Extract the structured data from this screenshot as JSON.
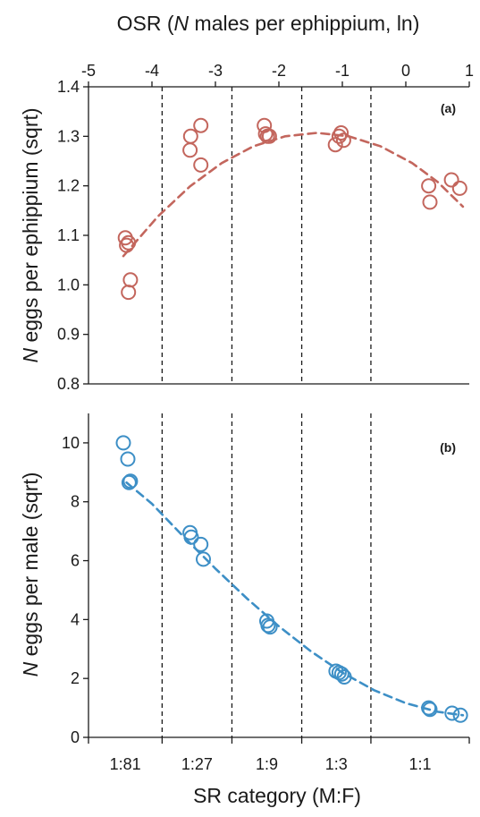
{
  "colors": {
    "panel_a": "#c3665d",
    "panel_b": "#3d8fc6",
    "axis": "#1a1a1a",
    "divider": "#1a1a1a"
  },
  "chart_data": [
    {
      "type": "scatter",
      "panel_label": "(a)",
      "xlabel_top_parts": [
        "OSR (",
        "N",
        " males per ephippium, ln)"
      ],
      "ylabel_parts": [
        "N",
        " eggs per ephippium (sqrt)"
      ],
      "xlim": [
        -5,
        1
      ],
      "ylim": [
        0.8,
        1.4
      ],
      "x_ticks": [
        -5,
        -4,
        -3,
        -2,
        -1,
        0,
        1
      ],
      "x_tick_labels": [
        "-5",
        "-4",
        "-3",
        "-2",
        "-1",
        "0",
        "1"
      ],
      "y_ticks": [
        0.8,
        0.9,
        1.0,
        1.1,
        1.2,
        1.3,
        1.4
      ],
      "y_tick_labels": [
        "0.8",
        "0.9",
        "1.0",
        "1.1",
        "1.2",
        "1.3",
        "1.4"
      ],
      "category_boundaries": [
        -3.84,
        -2.74,
        -1.64,
        -0.55
      ],
      "points": {
        "x": [
          -4.42,
          -4.37,
          -4.34,
          -4.37,
          -4.4,
          -3.39,
          -3.4,
          -3.23,
          -3.23,
          -2.23,
          -2.21,
          -2.18,
          -2.15,
          -1.11,
          -1.05,
          -1.02,
          -0.98,
          0.36,
          0.38,
          0.72,
          0.85
        ],
        "y": [
          1.095,
          1.085,
          1.01,
          0.985,
          1.08,
          1.3,
          1.272,
          1.322,
          1.242,
          1.322,
          1.305,
          1.3,
          1.3,
          1.283,
          1.3,
          1.307,
          1.292,
          1.2,
          1.167,
          1.212,
          1.195
        ]
      },
      "fit": {
        "type": "quadratic",
        "style": "dashed",
        "x": [
          -4.45,
          -3.9,
          -3.4,
          -2.9,
          -2.4,
          -1.9,
          -1.4,
          -0.9,
          -0.4,
          0.1,
          0.5,
          0.9
        ],
        "y": [
          1.058,
          1.139,
          1.199,
          1.246,
          1.28,
          1.3,
          1.307,
          1.3,
          1.28,
          1.246,
          1.208,
          1.158
        ]
      }
    },
    {
      "type": "scatter",
      "panel_label": "(b)",
      "xlabel": "SR category (M:F)",
      "ylabel_parts": [
        "N",
        " eggs per male (sqrt)"
      ],
      "xlim": [
        -5,
        1
      ],
      "ylim": [
        0,
        11
      ],
      "x_categories": [
        "1:81",
        "1:27",
        "1:9",
        "1:3",
        "1:1"
      ],
      "y_ticks": [
        0,
        2,
        4,
        6,
        8,
        10
      ],
      "y_tick_labels": [
        "0",
        "2",
        "4",
        "6",
        "8",
        "10"
      ],
      "category_boundaries": [
        -3.84,
        -2.74,
        -1.64,
        -0.55
      ],
      "points": {
        "x": [
          -4.45,
          -4.38,
          -4.36,
          -4.34,
          -3.4,
          -3.38,
          -3.23,
          -3.19,
          -2.19,
          -2.17,
          -2.14,
          -1.1,
          -1.05,
          -1.01,
          -0.97,
          0.36,
          0.38,
          0.73,
          0.86
        ],
        "y": [
          10.0,
          9.45,
          8.65,
          8.7,
          6.95,
          6.8,
          6.55,
          6.05,
          3.95,
          3.8,
          3.75,
          2.25,
          2.2,
          2.15,
          2.05,
          1.0,
          0.95,
          0.82,
          0.75
        ]
      },
      "fit": {
        "type": "exponential",
        "style": "dashed",
        "x": [
          -4.4,
          -4.0,
          -3.5,
          -3.0,
          -2.5,
          -2.0,
          -1.5,
          -1.0,
          -0.5,
          0.0,
          0.5,
          0.9
        ],
        "y": [
          8.65,
          7.93,
          6.81,
          5.73,
          4.71,
          3.77,
          2.93,
          2.2,
          1.6,
          1.16,
          0.87,
          0.75
        ]
      }
    }
  ]
}
